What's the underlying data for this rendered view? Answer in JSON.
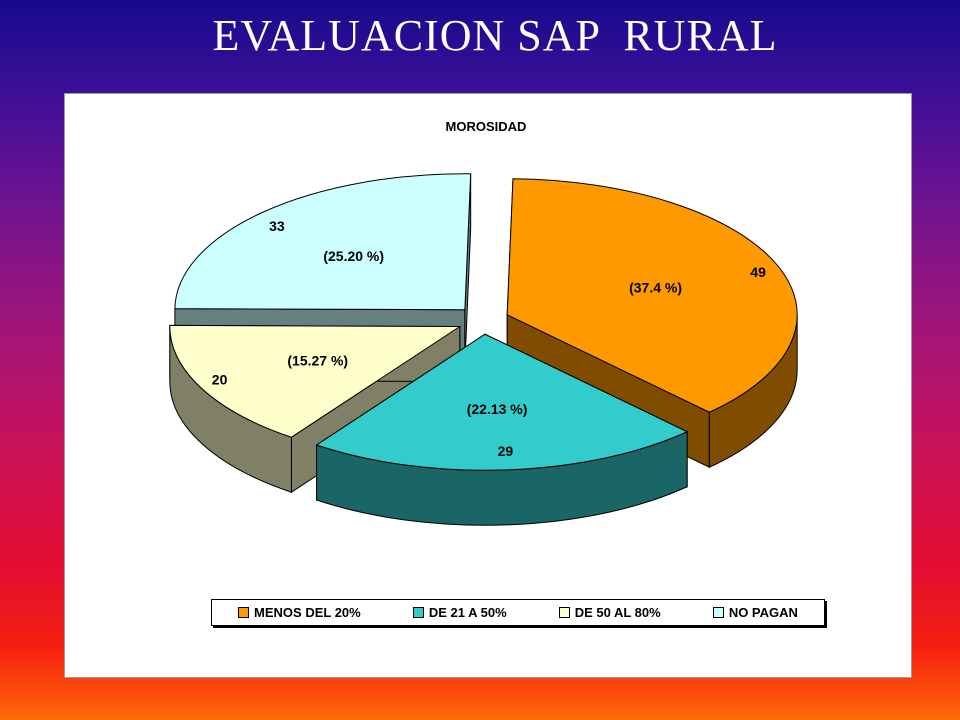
{
  "slide": {
    "title": "EVALUACION SAP  RURAL"
  },
  "chart_data": {
    "type": "pie",
    "title": "MOROSIDAD",
    "categories": [
      "MENOS DEL 20%",
      "DE 21 A 50%",
      "DE 50 AL 80%",
      "NO PAGAN"
    ],
    "values": [
      49,
      29,
      20,
      33
    ],
    "percent_labels": [
      "(37.4 %)",
      "(22.13 %)",
      "(15.27 %)",
      "(25.20 %)"
    ],
    "colors": [
      "#ff9900",
      "#33cccc",
      "#ffffcc",
      "#ccffff"
    ],
    "side_colors": [
      "#804c00",
      "#1a6666",
      "#808066",
      "#668080"
    ],
    "style": "3d-exploded",
    "legend_position": "bottom"
  }
}
